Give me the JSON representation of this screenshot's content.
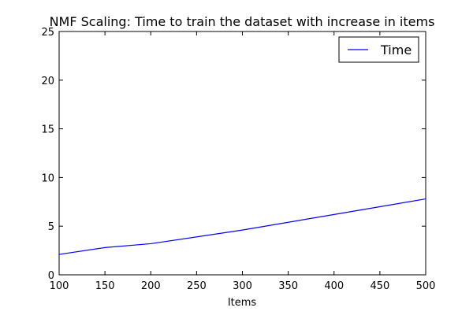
{
  "chart_data": {
    "type": "line",
    "title": "NMF Scaling: Time to train the dataset with increase in items",
    "xlabel": "Items",
    "ylabel": "",
    "xlim": [
      100,
      500
    ],
    "ylim": [
      0,
      25
    ],
    "xticks": [
      "100",
      "150",
      "200",
      "250",
      "300",
      "350",
      "400",
      "450",
      "500"
    ],
    "yticks": [
      "0",
      "5",
      "10",
      "15",
      "20",
      "25"
    ],
    "grid": false,
    "legend_position": "top-right",
    "series": [
      {
        "name": "Time",
        "color": "#0000ff",
        "x": [
          100,
          150,
          200,
          300,
          400,
          500
        ],
        "y": [
          2.1,
          2.8,
          3.2,
          4.6,
          6.2,
          7.8
        ]
      }
    ]
  }
}
